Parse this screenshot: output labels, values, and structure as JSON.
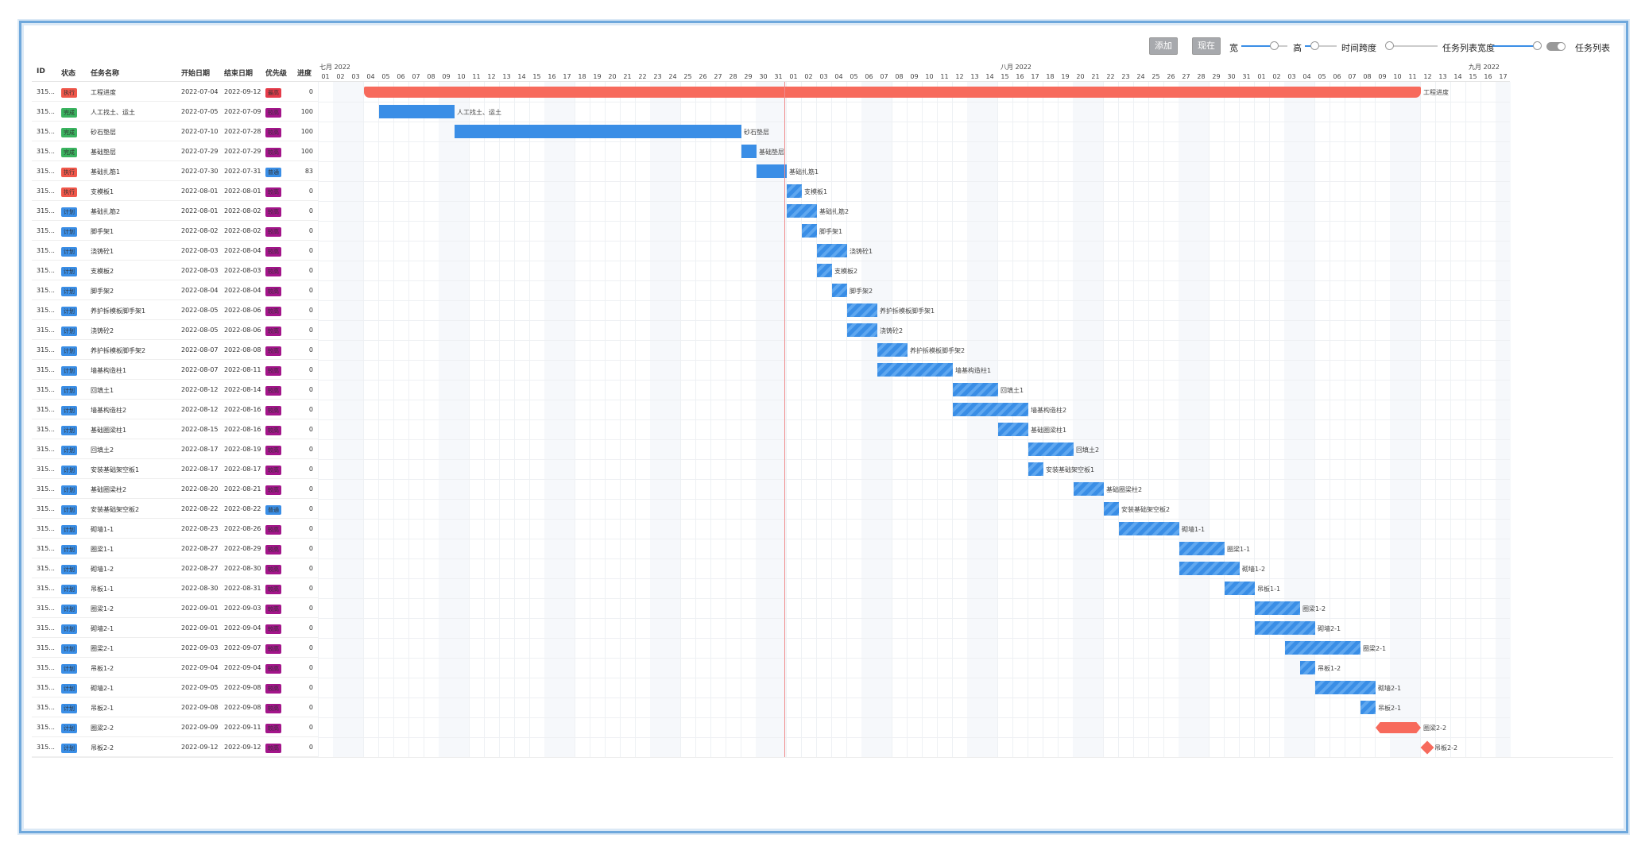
{
  "toolbar": {
    "add_label": "添加",
    "now_label": "现在",
    "width_label": "宽",
    "height_label": "高",
    "time_span_label": "时间跨度",
    "list_width_label": "任务列表宽度",
    "task_list_label": "任务列表",
    "width_value": 0.7,
    "height_value": 0.3,
    "time_span_value": 0.05,
    "list_width_value": 0.9,
    "task_list_on": true
  },
  "columns": {
    "id": "ID",
    "status": "状态",
    "name": "任务名称",
    "start": "开始日期",
    "end": "结束日期",
    "priority": "优先级",
    "progress": "进度"
  },
  "colors": {
    "exec": "#f0574a",
    "done": "#3ab35f",
    "plan": "#3a8ee6",
    "high": "#a3158a",
    "highest": "#e53b4a",
    "normal": "#3a8ee6",
    "bar": "#3a8ee6",
    "summary": "#f76a5c",
    "today": "#f08c8c"
  },
  "months": [
    {
      "label": "七月 2022",
      "start_day": 0
    },
    {
      "label": "八月 2022",
      "start_day": 31
    },
    {
      "label": "九月 2022",
      "start_day": 62
    }
  ],
  "days": [
    "01",
    "02",
    "03",
    "04",
    "05",
    "06",
    "07",
    "08",
    "09",
    "10",
    "11",
    "12",
    "13",
    "14",
    "15",
    "16",
    "17",
    "18",
    "19",
    "20",
    "21",
    "22",
    "23",
    "24",
    "25",
    "26",
    "27",
    "28",
    "29",
    "30",
    "31",
    "01",
    "02",
    "03",
    "04",
    "05",
    "06",
    "07",
    "08",
    "09",
    "10",
    "11",
    "12",
    "13",
    "14",
    "15",
    "16",
    "17",
    "18",
    "19",
    "20",
    "21",
    "22",
    "23",
    "24",
    "25",
    "26",
    "27",
    "28",
    "29",
    "30",
    "31",
    "01",
    "02",
    "03",
    "04",
    "05",
    "06",
    "07",
    "08",
    "09",
    "10",
    "11",
    "12",
    "13",
    "14",
    "15",
    "16",
    "17"
  ],
  "today_index": 30.9,
  "tasks": [
    {
      "id": "315...",
      "status": "执行",
      "status_type": "exec",
      "name": "工程进度",
      "start": "2022-07-04",
      "end": "2022-09-12",
      "priority": "最高",
      "priority_type": "highest",
      "progress": "0",
      "kind": "summary",
      "s": 3,
      "e": 73
    },
    {
      "id": "315...",
      "status": "完成",
      "status_type": "done",
      "name": "人工找土、运土",
      "start": "2022-07-05",
      "end": "2022-07-09",
      "priority": "较高",
      "priority_type": "high",
      "progress": "100",
      "kind": "done",
      "s": 4,
      "e": 9
    },
    {
      "id": "315...",
      "status": "完成",
      "status_type": "done",
      "name": "砂石垫层",
      "start": "2022-07-10",
      "end": "2022-07-28",
      "priority": "较高",
      "priority_type": "high",
      "progress": "100",
      "kind": "done",
      "s": 9,
      "e": 28
    },
    {
      "id": "315...",
      "status": "完成",
      "status_type": "done",
      "name": "基础垫层",
      "start": "2022-07-29",
      "end": "2022-07-29",
      "priority": "较高",
      "priority_type": "high",
      "progress": "100",
      "kind": "done",
      "s": 28,
      "e": 29
    },
    {
      "id": "315...",
      "status": "执行",
      "status_type": "exec",
      "name": "基础扎筋1",
      "start": "2022-07-30",
      "end": "2022-07-31",
      "priority": "普通",
      "priority_type": "normal",
      "progress": "83",
      "kind": "done",
      "s": 29,
      "e": 31
    },
    {
      "id": "315...",
      "status": "执行",
      "status_type": "exec",
      "name": "支模板1",
      "start": "2022-08-01",
      "end": "2022-08-01",
      "priority": "较高",
      "priority_type": "high",
      "progress": "0",
      "kind": "plan",
      "s": 31,
      "e": 32
    },
    {
      "id": "315...",
      "status": "计划",
      "status_type": "plan",
      "name": "基础扎筋2",
      "start": "2022-08-01",
      "end": "2022-08-02",
      "priority": "较高",
      "priority_type": "high",
      "progress": "0",
      "kind": "plan",
      "s": 31,
      "e": 33
    },
    {
      "id": "315...",
      "status": "计划",
      "status_type": "plan",
      "name": "脚手架1",
      "start": "2022-08-02",
      "end": "2022-08-02",
      "priority": "较高",
      "priority_type": "high",
      "progress": "0",
      "kind": "plan",
      "s": 32,
      "e": 33
    },
    {
      "id": "315...",
      "status": "计划",
      "status_type": "plan",
      "name": "浇铸砼1",
      "start": "2022-08-03",
      "end": "2022-08-04",
      "priority": "较高",
      "priority_type": "high",
      "progress": "0",
      "kind": "plan",
      "s": 33,
      "e": 35
    },
    {
      "id": "315...",
      "status": "计划",
      "status_type": "plan",
      "name": "支模板2",
      "start": "2022-08-03",
      "end": "2022-08-03",
      "priority": "较高",
      "priority_type": "high",
      "progress": "0",
      "kind": "plan",
      "s": 33,
      "e": 34
    },
    {
      "id": "315...",
      "status": "计划",
      "status_type": "plan",
      "name": "脚手架2",
      "start": "2022-08-04",
      "end": "2022-08-04",
      "priority": "较高",
      "priority_type": "high",
      "progress": "0",
      "kind": "plan",
      "s": 34,
      "e": 35
    },
    {
      "id": "315...",
      "status": "计划",
      "status_type": "plan",
      "name": "养护拆模板脚手架1",
      "start": "2022-08-05",
      "end": "2022-08-06",
      "priority": "较高",
      "priority_type": "high",
      "progress": "0",
      "kind": "plan",
      "s": 35,
      "e": 37
    },
    {
      "id": "315...",
      "status": "计划",
      "status_type": "plan",
      "name": "浇铸砼2",
      "start": "2022-08-05",
      "end": "2022-08-06",
      "priority": "较高",
      "priority_type": "high",
      "progress": "0",
      "kind": "plan",
      "s": 35,
      "e": 37
    },
    {
      "id": "315...",
      "status": "计划",
      "status_type": "plan",
      "name": "养护拆模板脚手架2",
      "start": "2022-08-07",
      "end": "2022-08-08",
      "priority": "较高",
      "priority_type": "high",
      "progress": "0",
      "kind": "plan",
      "s": 37,
      "e": 39
    },
    {
      "id": "315...",
      "status": "计划",
      "status_type": "plan",
      "name": "墙基构造柱1",
      "start": "2022-08-07",
      "end": "2022-08-11",
      "priority": "较高",
      "priority_type": "high",
      "progress": "0",
      "kind": "plan",
      "s": 37,
      "e": 42
    },
    {
      "id": "315...",
      "status": "计划",
      "status_type": "plan",
      "name": "回填土1",
      "start": "2022-08-12",
      "end": "2022-08-14",
      "priority": "较高",
      "priority_type": "high",
      "progress": "0",
      "kind": "plan",
      "s": 42,
      "e": 45
    },
    {
      "id": "315...",
      "status": "计划",
      "status_type": "plan",
      "name": "墙基构造柱2",
      "start": "2022-08-12",
      "end": "2022-08-16",
      "priority": "较高",
      "priority_type": "high",
      "progress": "0",
      "kind": "plan",
      "s": 42,
      "e": 47
    },
    {
      "id": "315...",
      "status": "计划",
      "status_type": "plan",
      "name": "基础圈梁柱1",
      "start": "2022-08-15",
      "end": "2022-08-16",
      "priority": "较高",
      "priority_type": "high",
      "progress": "0",
      "kind": "plan",
      "s": 45,
      "e": 47
    },
    {
      "id": "315...",
      "status": "计划",
      "status_type": "plan",
      "name": "回填土2",
      "start": "2022-08-17",
      "end": "2022-08-19",
      "priority": "较高",
      "priority_type": "high",
      "progress": "0",
      "kind": "plan",
      "s": 47,
      "e": 50
    },
    {
      "id": "315...",
      "status": "计划",
      "status_type": "plan",
      "name": "安装基础架空板1",
      "start": "2022-08-17",
      "end": "2022-08-17",
      "priority": "较高",
      "priority_type": "high",
      "progress": "0",
      "kind": "plan",
      "s": 47,
      "e": 48
    },
    {
      "id": "315...",
      "status": "计划",
      "status_type": "plan",
      "name": "基础圈梁柱2",
      "start": "2022-08-20",
      "end": "2022-08-21",
      "priority": "较高",
      "priority_type": "high",
      "progress": "0",
      "kind": "plan",
      "s": 50,
      "e": 52
    },
    {
      "id": "315...",
      "status": "计划",
      "status_type": "plan",
      "name": "安装基础架空板2",
      "start": "2022-08-22",
      "end": "2022-08-22",
      "priority": "普通",
      "priority_type": "normal",
      "progress": "0",
      "kind": "plan",
      "s": 52,
      "e": 53
    },
    {
      "id": "315...",
      "status": "计划",
      "status_type": "plan",
      "name": "砌墙1-1",
      "start": "2022-08-23",
      "end": "2022-08-26",
      "priority": "较高",
      "priority_type": "high",
      "progress": "0",
      "kind": "plan",
      "s": 53,
      "e": 57
    },
    {
      "id": "315...",
      "status": "计划",
      "status_type": "plan",
      "name": "圈梁1-1",
      "start": "2022-08-27",
      "end": "2022-08-29",
      "priority": "较高",
      "priority_type": "high",
      "progress": "0",
      "kind": "plan",
      "s": 57,
      "e": 60
    },
    {
      "id": "315...",
      "status": "计划",
      "status_type": "plan",
      "name": "砌墙1-2",
      "start": "2022-08-27",
      "end": "2022-08-30",
      "priority": "较高",
      "priority_type": "high",
      "progress": "0",
      "kind": "plan",
      "s": 57,
      "e": 61
    },
    {
      "id": "315...",
      "status": "计划",
      "status_type": "plan",
      "name": "吊板1-1",
      "start": "2022-08-30",
      "end": "2022-08-31",
      "priority": "较高",
      "priority_type": "high",
      "progress": "0",
      "kind": "plan",
      "s": 60,
      "e": 62
    },
    {
      "id": "315...",
      "status": "计划",
      "status_type": "plan",
      "name": "圈梁1-2",
      "start": "2022-09-01",
      "end": "2022-09-03",
      "priority": "较高",
      "priority_type": "high",
      "progress": "0",
      "kind": "plan",
      "s": 62,
      "e": 65
    },
    {
      "id": "315...",
      "status": "计划",
      "status_type": "plan",
      "name": "砌墙2-1",
      "start": "2022-09-01",
      "end": "2022-09-04",
      "priority": "较高",
      "priority_type": "high",
      "progress": "0",
      "kind": "plan",
      "s": 62,
      "e": 66
    },
    {
      "id": "315...",
      "status": "计划",
      "status_type": "plan",
      "name": "圈梁2-1",
      "start": "2022-09-03",
      "end": "2022-09-07",
      "priority": "较高",
      "priority_type": "high",
      "progress": "0",
      "kind": "plan",
      "s": 64,
      "e": 69
    },
    {
      "id": "315...",
      "status": "计划",
      "status_type": "plan",
      "name": "吊板1-2",
      "start": "2022-09-04",
      "end": "2022-09-04",
      "priority": "较高",
      "priority_type": "high",
      "progress": "0",
      "kind": "plan",
      "s": 65,
      "e": 66
    },
    {
      "id": "315...",
      "status": "计划",
      "status_type": "plan",
      "name": "砌墙2-1",
      "start": "2022-09-05",
      "end": "2022-09-08",
      "priority": "较高",
      "priority_type": "high",
      "progress": "0",
      "kind": "plan",
      "s": 66,
      "e": 70
    },
    {
      "id": "315...",
      "status": "计划",
      "status_type": "plan",
      "name": "吊板2-1",
      "start": "2022-09-08",
      "end": "2022-09-08",
      "priority": "较高",
      "priority_type": "high",
      "progress": "0",
      "kind": "plan",
      "s": 69,
      "e": 70
    },
    {
      "id": "315...",
      "status": "计划",
      "status_type": "plan",
      "name": "圈梁2-2",
      "start": "2022-09-09",
      "end": "2022-09-11",
      "priority": "较高",
      "priority_type": "high",
      "progress": "0",
      "kind": "hex",
      "s": 70,
      "e": 73
    },
    {
      "id": "315...",
      "status": "计划",
      "status_type": "plan",
      "name": "吊板2-2",
      "start": "2022-09-12",
      "end": "2022-09-12",
      "priority": "较高",
      "priority_type": "high",
      "progress": "0",
      "kind": "milestone",
      "s": 73,
      "e": 73
    }
  ]
}
